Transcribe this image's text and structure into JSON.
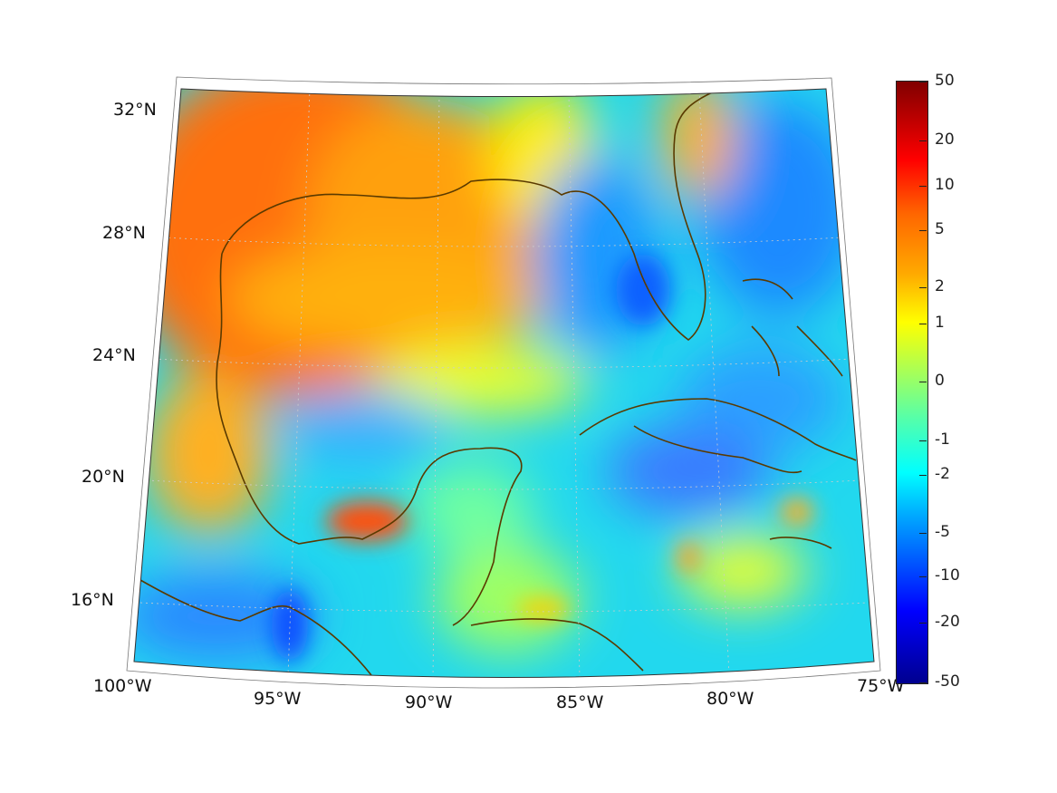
{
  "map": {
    "lat_labels": [
      "32°N",
      "28°N",
      "24°N",
      "20°N",
      "16°N"
    ],
    "lon_labels": [
      "100°W",
      "95°W",
      "90°W",
      "85°W",
      "80°W",
      "75°W"
    ],
    "coastline_color": "#5a3a00"
  },
  "colorbar": {
    "colormap": "jet",
    "tick_labels": [
      "50",
      "20",
      "10",
      "5",
      "2",
      "1",
      "0",
      "-1",
      "-2",
      "-5",
      "-10",
      "-20",
      "-50"
    ]
  }
}
